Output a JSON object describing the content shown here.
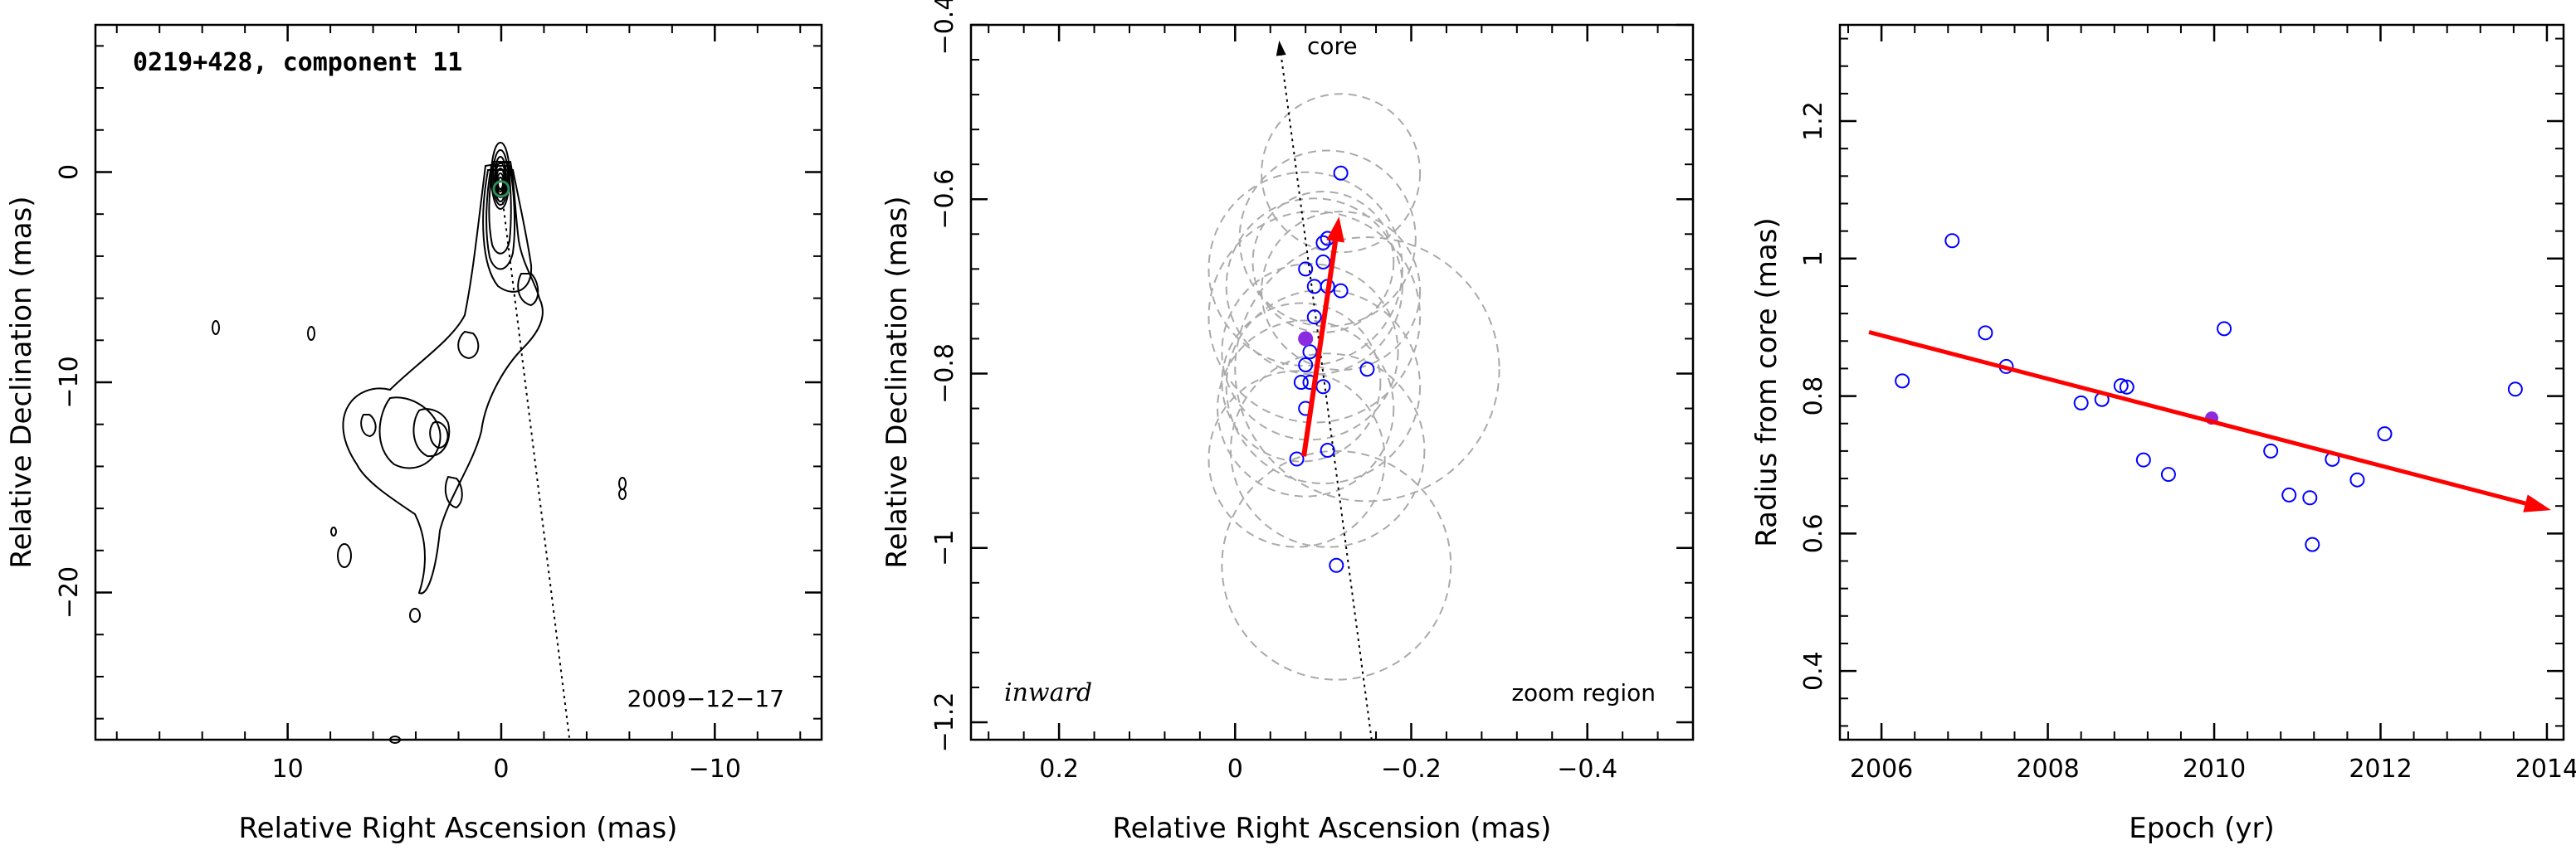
{
  "chart_data": [
    {
      "type": "contour",
      "title": "0219+428, component 11",
      "date_label": "2009−12−17",
      "xlabel": "Relative Right Ascension (mas)",
      "ylabel": "Relative Declination (mas)",
      "xlim": [
        19,
        -15
      ],
      "ylim": [
        -27,
        7
      ],
      "xticks": [
        10,
        0,
        -10
      ],
      "xtick_labels": [
        "10",
        "0",
        "−10"
      ],
      "yticks": [
        0,
        -10,
        -20
      ],
      "ytick_labels": [
        "0",
        "−10",
        "−20"
      ],
      "x_axis_reversed": true,
      "component_marker": {
        "x": 0,
        "y": -0.8,
        "color": "#2e8b57"
      },
      "jet_direction_line": {
        "from": [
          0,
          -0.8
        ],
        "to": [
          -3.2,
          -27
        ],
        "style": "dotted"
      }
    },
    {
      "type": "scatter",
      "xlabel": "Relative Right Ascension (mas)",
      "ylabel": "Relative Declination (mas)",
      "xlim": [
        0.3,
        -0.52
      ],
      "ylim": [
        -1.22,
        -0.4
      ],
      "xticks": [
        0.2,
        0,
        -0.2,
        -0.4
      ],
      "xtick_labels": [
        "0.2",
        "0",
        "−0.2",
        "−0.4"
      ],
      "yticks": [
        -0.4,
        -0.6,
        -0.8,
        -1,
        -1.2
      ],
      "ytick_labels": [
        "−0.4",
        "−0.6",
        "−0.8",
        "−1",
        "−1.2"
      ],
      "x_axis_reversed": true,
      "core_label": "core",
      "inward_label": "inward",
      "zoom_label": "zoom region",
      "points": [
        {
          "x": -0.12,
          "y": -0.57
        },
        {
          "x": -0.105,
          "y": -0.645
        },
        {
          "x": -0.1,
          "y": -0.65
        },
        {
          "x": -0.1,
          "y": -0.672
        },
        {
          "x": -0.08,
          "y": -0.68
        },
        {
          "x": -0.09,
          "y": -0.7
        },
        {
          "x": -0.105,
          "y": -0.7
        },
        {
          "x": -0.12,
          "y": -0.705
        },
        {
          "x": -0.09,
          "y": -0.735
        },
        {
          "x": -0.085,
          "y": -0.775
        },
        {
          "x": -0.08,
          "y": -0.79
        },
        {
          "x": -0.075,
          "y": -0.81
        },
        {
          "x": -0.085,
          "y": -0.81
        },
        {
          "x": -0.1,
          "y": -0.815
        },
        {
          "x": -0.08,
          "y": -0.84
        },
        {
          "x": -0.15,
          "y": -0.795
        },
        {
          "x": -0.07,
          "y": -0.898
        },
        {
          "x": -0.105,
          "y": -0.888
        },
        {
          "x": -0.115,
          "y": -1.02
        }
      ],
      "mean_point": {
        "x": -0.08,
        "y": -0.76
      },
      "circles": [
        {
          "x": -0.12,
          "y": -0.57,
          "r": 0.09
        },
        {
          "x": -0.105,
          "y": -0.645,
          "r": 0.1
        },
        {
          "x": -0.1,
          "y": -0.672,
          "r": 0.08
        },
        {
          "x": -0.08,
          "y": -0.68,
          "r": 0.11
        },
        {
          "x": -0.09,
          "y": -0.7,
          "r": 0.1
        },
        {
          "x": -0.12,
          "y": -0.705,
          "r": 0.09
        },
        {
          "x": -0.09,
          "y": -0.735,
          "r": 0.12
        },
        {
          "x": -0.085,
          "y": -0.775,
          "r": 0.1
        },
        {
          "x": -0.075,
          "y": -0.81,
          "r": 0.09
        },
        {
          "x": -0.1,
          "y": -0.815,
          "r": 0.11
        },
        {
          "x": -0.08,
          "y": -0.84,
          "r": 0.1
        },
        {
          "x": -0.15,
          "y": -0.795,
          "r": 0.15
        },
        {
          "x": -0.07,
          "y": -0.898,
          "r": 0.1
        },
        {
          "x": -0.105,
          "y": -0.888,
          "r": 0.11
        },
        {
          "x": -0.115,
          "y": -1.02,
          "r": 0.13
        }
      ],
      "velocity_arrow": {
        "from": [
          -0.078,
          -0.895
        ],
        "to": [
          -0.118,
          -0.62
        ],
        "color": "#ff0000"
      },
      "core_direction_line": {
        "from": [
          -0.155,
          -1.22
        ],
        "to": [
          -0.05,
          -0.418
        ],
        "style": "dotted"
      }
    },
    {
      "type": "scatter",
      "xlabel": "Epoch (yr)",
      "ylabel": "Radius from core (mas)",
      "xlim": [
        2005.5,
        2014.2
      ],
      "ylim": [
        0.3,
        1.34
      ],
      "xticks": [
        2006,
        2008,
        2010,
        2012,
        2014
      ],
      "xtick_labels": [
        "2006",
        "2008",
        "2010",
        "2012",
        "2014"
      ],
      "yticks": [
        0.4,
        0.6,
        0.8,
        1,
        1.2
      ],
      "ytick_labels": [
        "0.4",
        "0.6",
        "0.8",
        "1",
        "1.2"
      ],
      "points": [
        {
          "x": 2006.25,
          "y": 0.822
        },
        {
          "x": 2006.85,
          "y": 1.026
        },
        {
          "x": 2007.25,
          "y": 0.892
        },
        {
          "x": 2007.5,
          "y": 0.843
        },
        {
          "x": 2008.4,
          "y": 0.79
        },
        {
          "x": 2008.65,
          "y": 0.795
        },
        {
          "x": 2008.88,
          "y": 0.815
        },
        {
          "x": 2008.95,
          "y": 0.813
        },
        {
          "x": 2009.15,
          "y": 0.707
        },
        {
          "x": 2009.45,
          "y": 0.686
        },
        {
          "x": 2010.12,
          "y": 0.898
        },
        {
          "x": 2010.68,
          "y": 0.72
        },
        {
          "x": 2010.9,
          "y": 0.656
        },
        {
          "x": 2011.15,
          "y": 0.652
        },
        {
          "x": 2011.18,
          "y": 0.584
        },
        {
          "x": 2011.42,
          "y": 0.708
        },
        {
          "x": 2011.72,
          "y": 0.678
        },
        {
          "x": 2012.05,
          "y": 0.745
        },
        {
          "x": 2013.62,
          "y": 0.81
        }
      ],
      "mean_point": {
        "x": 2009.97,
        "y": 0.768
      },
      "trend_arrow": {
        "from": [
          2005.85,
          0.893
        ],
        "to": [
          2014.05,
          0.634
        ],
        "color": "#ff0000"
      }
    }
  ],
  "colors": {
    "point": "#0000ff",
    "mean": "#8a2be2",
    "arrow": "#ff0000",
    "circle": "#aaaaaa"
  }
}
